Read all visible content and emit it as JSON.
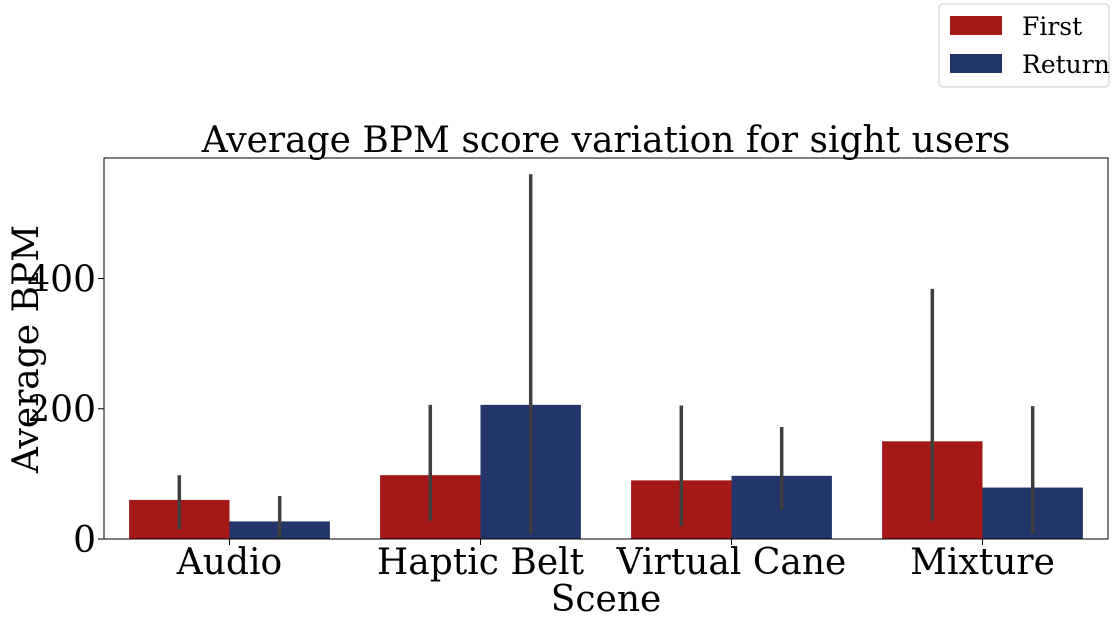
{
  "chart_data": {
    "type": "bar",
    "title": "Average BPM score variation for sight users",
    "xlabel": "Scene",
    "ylabel": "Average BPM",
    "categories": [
      "Audio",
      "Haptic Belt",
      "Virtual Cane",
      "Mixture"
    ],
    "ylim": [
      0,
      585
    ],
    "yticks": [
      0,
      200,
      400
    ],
    "grid": false,
    "legend_position": "top-right",
    "series": [
      {
        "name": "First",
        "color": "#a51818",
        "values": [
          60,
          98,
          90,
          150
        ],
        "error_low": [
          15,
          28,
          20,
          28
        ],
        "error_high": [
          98,
          206,
          205,
          384
        ]
      },
      {
        "name": "Return",
        "color": "#22366b",
        "values": [
          27,
          206,
          97,
          79
        ],
        "error_low": [
          2,
          8,
          45,
          8
        ],
        "error_high": [
          66,
          560,
          172,
          204
        ]
      }
    ],
    "errorbar_color": "#3f3f3f"
  }
}
